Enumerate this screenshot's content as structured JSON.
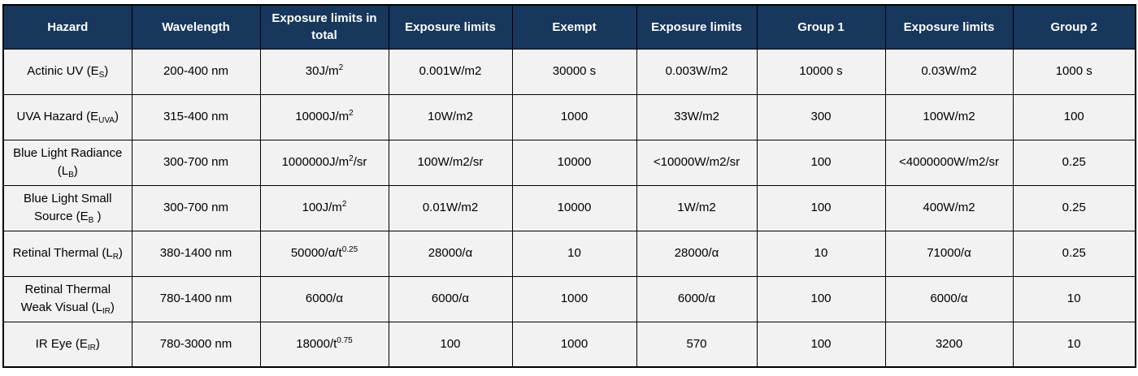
{
  "colors": {
    "header_bg": "#17375d",
    "header_text": "#ffffff",
    "row_bg": "#f2f2f2",
    "border": "#000000",
    "cell_text": "#000000"
  },
  "table": {
    "columns": [
      "Hazard",
      "Wavelength",
      "Exposure limits in total",
      "Exposure limits",
      "Exempt",
      "Exposure limits",
      "Group 1",
      "Exposure limits",
      "Group 2"
    ],
    "rows": [
      [
        [
          {
            "t": "Actinic UV (E",
            "f": "n"
          },
          {
            "t": "S",
            "f": "sub"
          },
          {
            "t": ")",
            "f": "n"
          }
        ],
        [
          {
            "t": "200-400 nm",
            "f": "n"
          }
        ],
        [
          {
            "t": "30J/m",
            "f": "n"
          },
          {
            "t": "2",
            "f": "sup"
          }
        ],
        [
          {
            "t": "0.001W/m2",
            "f": "n"
          }
        ],
        [
          {
            "t": "30000 s",
            "f": "n"
          }
        ],
        [
          {
            "t": "0.003W/m2",
            "f": "n"
          }
        ],
        [
          {
            "t": "10000 s",
            "f": "n"
          }
        ],
        [
          {
            "t": "0.03W/m2",
            "f": "n"
          }
        ],
        [
          {
            "t": "1000 s",
            "f": "n"
          }
        ]
      ],
      [
        [
          {
            "t": "UVA Hazard (E",
            "f": "n"
          },
          {
            "t": "UVA",
            "f": "sub"
          },
          {
            "t": ")",
            "f": "n"
          }
        ],
        [
          {
            "t": "315-400 nm",
            "f": "n"
          }
        ],
        [
          {
            "t": "10000J/m",
            "f": "n"
          },
          {
            "t": "2",
            "f": "sup"
          }
        ],
        [
          {
            "t": "10W/m2",
            "f": "n"
          }
        ],
        [
          {
            "t": "1000",
            "f": "n"
          }
        ],
        [
          {
            "t": "33W/m2",
            "f": "n"
          }
        ],
        [
          {
            "t": "300",
            "f": "n"
          }
        ],
        [
          {
            "t": "100W/m2",
            "f": "n"
          }
        ],
        [
          {
            "t": "100",
            "f": "n"
          }
        ]
      ],
      [
        [
          {
            "t": "Blue Light Radiance (L",
            "f": "n"
          },
          {
            "t": "B",
            "f": "sub"
          },
          {
            "t": ")",
            "f": "n"
          }
        ],
        [
          {
            "t": "300-700 nm",
            "f": "n"
          }
        ],
        [
          {
            "t": "1000000J/m",
            "f": "n"
          },
          {
            "t": "2",
            "f": "sup"
          },
          {
            "t": "/sr",
            "f": "n"
          }
        ],
        [
          {
            "t": "100W/m2/sr",
            "f": "n"
          }
        ],
        [
          {
            "t": "10000",
            "f": "n"
          }
        ],
        [
          {
            "t": "<10000W/m2/sr",
            "f": "n"
          }
        ],
        [
          {
            "t": "100",
            "f": "n"
          }
        ],
        [
          {
            "t": "<4000000W/m2/sr",
            "f": "n"
          }
        ],
        [
          {
            "t": "0.25",
            "f": "n"
          }
        ]
      ],
      [
        [
          {
            "t": "Blue Light Small Source (E",
            "f": "n"
          },
          {
            "t": "B",
            "f": "sub"
          },
          {
            "t": " )",
            "f": "n"
          }
        ],
        [
          {
            "t": "300-700 nm",
            "f": "n"
          }
        ],
        [
          {
            "t": "100J/m",
            "f": "n"
          },
          {
            "t": "2",
            "f": "sup"
          }
        ],
        [
          {
            "t": "0.01W/m2",
            "f": "n"
          }
        ],
        [
          {
            "t": "10000",
            "f": "n"
          }
        ],
        [
          {
            "t": "1W/m2",
            "f": "n"
          }
        ],
        [
          {
            "t": "100",
            "f": "n"
          }
        ],
        [
          {
            "t": "400W/m2",
            "f": "n"
          }
        ],
        [
          {
            "t": "0.25",
            "f": "n"
          }
        ]
      ],
      [
        [
          {
            "t": "Retinal Thermal (L",
            "f": "n"
          },
          {
            "t": "R",
            "f": "sub"
          },
          {
            "t": ")",
            "f": "n"
          }
        ],
        [
          {
            "t": "380-1400 nm",
            "f": "n"
          }
        ],
        [
          {
            "t": "50000/α/t",
            "f": "n"
          },
          {
            "t": "0.25",
            "f": "sup"
          }
        ],
        [
          {
            "t": "28000/α",
            "f": "n"
          }
        ],
        [
          {
            "t": "10",
            "f": "n"
          }
        ],
        [
          {
            "t": "28000/α",
            "f": "n"
          }
        ],
        [
          {
            "t": "10",
            "f": "n"
          }
        ],
        [
          {
            "t": "71000/α",
            "f": "n"
          }
        ],
        [
          {
            "t": "0.25",
            "f": "n"
          }
        ]
      ],
      [
        [
          {
            "t": "Retinal Thermal Weak Visual (L",
            "f": "n"
          },
          {
            "t": "IR",
            "f": "sub"
          },
          {
            "t": ")",
            "f": "n"
          }
        ],
        [
          {
            "t": "780-1400 nm",
            "f": "n"
          }
        ],
        [
          {
            "t": "6000/α",
            "f": "n"
          }
        ],
        [
          {
            "t": "6000/α",
            "f": "n"
          }
        ],
        [
          {
            "t": "1000",
            "f": "n"
          }
        ],
        [
          {
            "t": "6000/α",
            "f": "n"
          }
        ],
        [
          {
            "t": "100",
            "f": "n"
          }
        ],
        [
          {
            "t": "6000/α",
            "f": "n"
          }
        ],
        [
          {
            "t": "10",
            "f": "n"
          }
        ]
      ],
      [
        [
          {
            "t": "IR Eye (E",
            "f": "n"
          },
          {
            "t": "IR",
            "f": "sub"
          },
          {
            "t": ")",
            "f": "n"
          }
        ],
        [
          {
            "t": "780-3000 nm",
            "f": "n"
          }
        ],
        [
          {
            "t": "18000/t",
            "f": "n"
          },
          {
            "t": "0.75",
            "f": "sup"
          }
        ],
        [
          {
            "t": "100",
            "f": "n"
          }
        ],
        [
          {
            "t": "1000",
            "f": "n"
          }
        ],
        [
          {
            "t": "570",
            "f": "n"
          }
        ],
        [
          {
            "t": "100",
            "f": "n"
          }
        ],
        [
          {
            "t": "3200",
            "f": "n"
          }
        ],
        [
          {
            "t": "10",
            "f": "n"
          }
        ]
      ]
    ]
  }
}
